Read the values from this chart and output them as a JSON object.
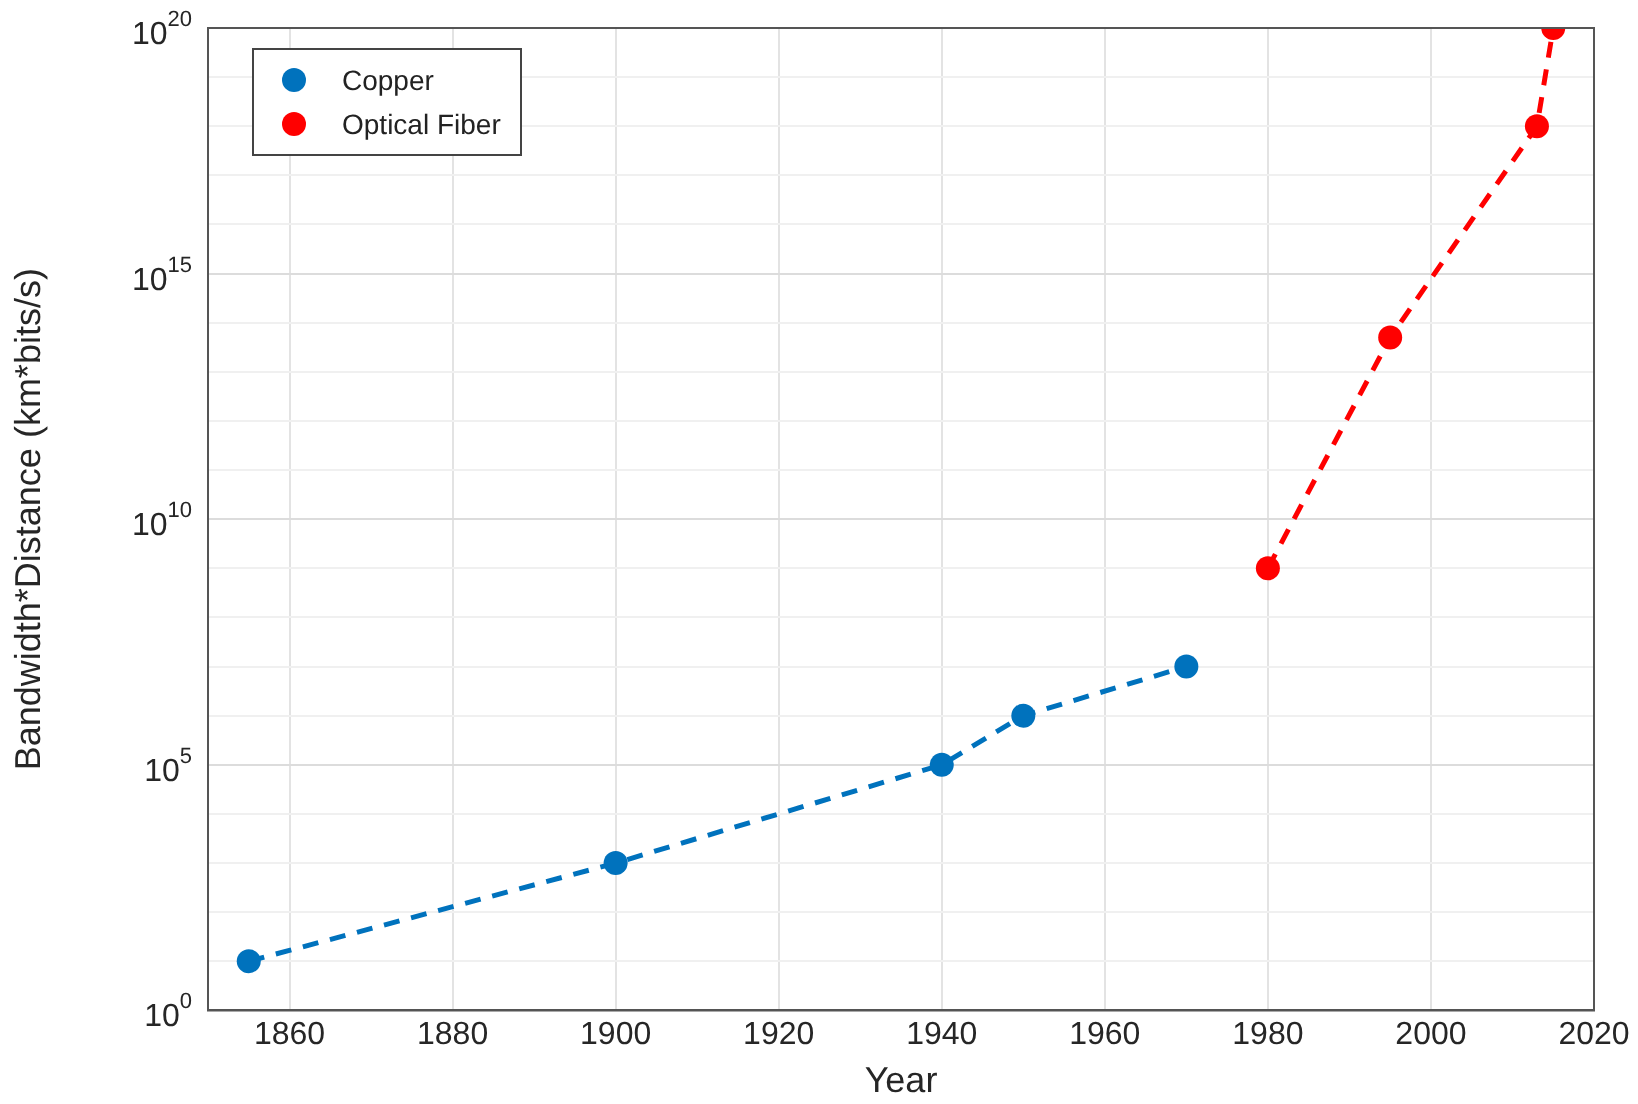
{
  "chart_data": {
    "type": "line",
    "xlabel": "Year",
    "ylabel": "Bandwidth*Distance (km*bits/s)",
    "log": "y",
    "grid": true,
    "legend": "top left",
    "marker": "circle",
    "line_style": "dashed",
    "xlim": [
      1850,
      2020
    ],
    "xticks": [
      1860,
      1880,
      1900,
      1920,
      1940,
      1960,
      1980,
      2000,
      2020
    ],
    "ylim": [
      1,
      1e+20
    ],
    "yticks": [
      {
        "value": 1,
        "label": "10$^{0}$"
      },
      {
        "value": 10,
        "label": null
      },
      {
        "value": 100,
        "label": null
      },
      {
        "value": 1000,
        "label": null
      },
      {
        "value": 10000,
        "label": null
      },
      {
        "value": 100000,
        "label": "10$^{5}$"
      },
      {
        "value": 1000000.0,
        "label": null
      },
      {
        "value": 10000000.0,
        "label": null
      },
      {
        "value": 100000000.0,
        "label": null
      },
      {
        "value": 1000000000.0,
        "label": null
      },
      {
        "value": 10000000000.0,
        "label": "10$^{10}$"
      },
      {
        "value": 100000000000.0,
        "label": null
      },
      {
        "value": 1000000000000.0,
        "label": null
      },
      {
        "value": 10000000000000.0,
        "label": null
      },
      {
        "value": 100000000000000.0,
        "label": null
      },
      {
        "value": 1000000000000000.0,
        "label": "10$^{15}$"
      },
      {
        "value": 1e+16,
        "label": null
      },
      {
        "value": 1e+17,
        "label": null
      },
      {
        "value": 1e+18,
        "label": null
      },
      {
        "value": 1e+19,
        "label": null
      },
      {
        "value": 1e+20,
        "label": "10$^{20}$"
      }
    ],
    "series": [
      {
        "name": "Copper",
        "color": "#0072bd",
        "x": [
          1855,
          1900,
          1940,
          1950,
          1970
        ],
        "values": [
          10,
          1000,
          100000.0,
          1000000.0,
          10000000.0
        ]
      },
      {
        "name": "Optical Fiber",
        "color": "#ff0000",
        "x": [
          1980,
          1995,
          2013,
          2015
        ],
        "values": [
          1000000000.0,
          50000000000000.0,
          1e+18,
          1e+20
        ]
      }
    ]
  }
}
